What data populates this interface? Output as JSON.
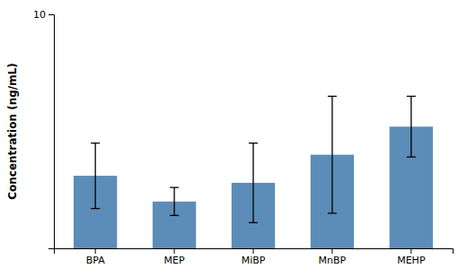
{
  "chart_data": {
    "type": "bar",
    "categories": [
      "BPA",
      "MEP",
      "MiBP",
      "MnBP",
      "MEHP"
    ],
    "values": [
      3.1,
      2.0,
      2.8,
      4.0,
      5.2
    ],
    "errors": [
      1.4,
      0.6,
      1.7,
      2.5,
      1.3
    ],
    "color": "#5B8DB8",
    "ylabel": "Concentration (ng/mL)",
    "ylim": [
      0,
      10
    ],
    "yticks": [
      10
    ],
    "grid": false
  }
}
